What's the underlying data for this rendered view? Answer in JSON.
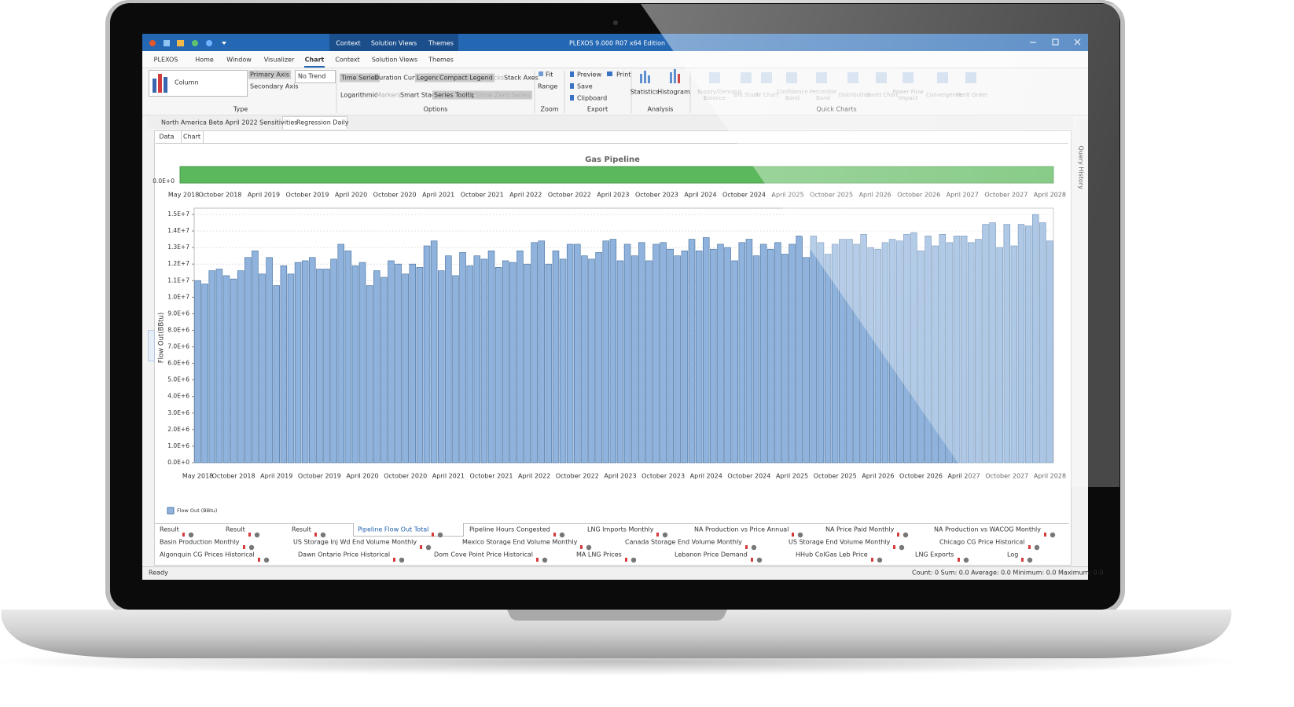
{
  "window": {
    "title": "PLEXOS 9.000 R07 x64 Edition",
    "context_tabs": [
      "Context",
      "Solution Views",
      "Themes"
    ]
  },
  "menu": [
    "PLEXOS",
    "Home",
    "Window",
    "Visualizer",
    "Chart",
    "Context",
    "Solution Views",
    "Themes"
  ],
  "ribbon": {
    "type": {
      "label": "Type",
      "chart_type": "Column",
      "primary": "Primary Axis",
      "secondary": "Secondary Axis",
      "trend": "No Trend"
    },
    "options": {
      "label": "Options",
      "items": [
        "Time Series",
        "Duration Curve",
        "Legend",
        "Compact Legend",
        "Ticks",
        "Stack Axes",
        "Logarithmic",
        "Markers",
        "Smart Stack",
        "Series Tooltips",
        "Show Zero Series"
      ]
    },
    "zoom": {
      "label": "Zoom",
      "items": [
        "Fit",
        "Range"
      ]
    },
    "export": {
      "label": "Export",
      "items": [
        "Preview",
        "Print",
        "Save",
        "Clipboard"
      ]
    },
    "analysis": {
      "label": "Analysis",
      "items": [
        "Statistics",
        "Histogram"
      ]
    },
    "quick_charts": {
      "label": "Quick Charts",
      "items": [
        "Supply/Demand Balance",
        "Bid Stack",
        "XY Chart",
        "Confidence Band",
        "Percentile Band",
        "Distribution",
        "Gantt Chart",
        "Power Flow Impact",
        "Convergence",
        "Merit Order"
      ]
    }
  },
  "documents": [
    "North America  Beta April 2022 Sensitivities",
    "Regression Daily"
  ],
  "view_tabs": [
    "Data",
    "Chart"
  ],
  "side_panel": "Query History",
  "results": [
    [
      "Result",
      "Result",
      "Result",
      "Pipeline Flow Out Total",
      "Pipeline Hours Congested",
      "LNG Imports Monthly",
      "NA Production  vs Price Annual",
      "NA Price Paid Monthly",
      "NA Production vs WACOG Monthly"
    ],
    [
      "Basin Production Monthly",
      "US Storage Inj Wd End Volume Monthly",
      "Mexico Storage End Volume Monthly",
      "Canada Storage End Volume Monthly",
      "US Storage End Volume Monthly",
      "Chicago CG Price Historical"
    ],
    [
      "Algonquin CG Prices Historical",
      "Dawn Ontario Price Historical",
      "Dom Cove Point Price Historical",
      "MA LNG Prices",
      "Lebanon Price Demand",
      "HHub ColGas Leb Price",
      "LNG Exports",
      "Log"
    ]
  ],
  "status": {
    "left": "Ready",
    "right": "Count: 0  Sum: 0.0  Average: 0.0  Minimum: 0.0  Maximum: 0.0"
  },
  "chart_data": {
    "type": "bar",
    "title": "Gas Pipeline",
    "y_label": "Flow Out(BBtu)",
    "categories": [
      "May 2018",
      null,
      null,
      null,
      null,
      "October 2018",
      null,
      null,
      null,
      null,
      null,
      "April 2019",
      null,
      null,
      null,
      null,
      null,
      "October 2019",
      null,
      null,
      null,
      null,
      null,
      "April 2020",
      null,
      null,
      null,
      null,
      null,
      "October 2020",
      null,
      null,
      null,
      null,
      null,
      "April 2021",
      null,
      null,
      null,
      null,
      null,
      "October 2021",
      null,
      null,
      null,
      null,
      null,
      "April 2022",
      null,
      null,
      null,
      null,
      null,
      "October 2022",
      null,
      null,
      null,
      null,
      null,
      "April 2023",
      null,
      null,
      null,
      null,
      null,
      "October 2023",
      null,
      null,
      null,
      null,
      null,
      "April 2024",
      null,
      null,
      null,
      null,
      null,
      "October 2024",
      null,
      null,
      null,
      null,
      null,
      "April 2025",
      null,
      null,
      null,
      null,
      null,
      "October 2025",
      null,
      null,
      null,
      null,
      null,
      "April 2026",
      null,
      null,
      null,
      null,
      null,
      "October 2026",
      null,
      null,
      null,
      null,
      null,
      "April 2027",
      null,
      null,
      null,
      null,
      null,
      "October 2027",
      null,
      null,
      null,
      null,
      null,
      "April 2028"
    ],
    "series": [
      {
        "name": "Flow Out (BBtu)",
        "color": "#8fb3dc",
        "values": [
          11000000,
          10800000,
          11600000,
          11700000,
          11300000,
          11100000,
          11600000,
          12400000,
          12800000,
          11400000,
          12400000,
          10700000,
          11900000,
          11400000,
          12100000,
          12200000,
          12400000,
          11700000,
          11700000,
          12300000,
          13200000,
          12800000,
          11900000,
          12100000,
          10700000,
          11600000,
          11200000,
          12200000,
          12000000,
          11400000,
          12000000,
          11800000,
          13100000,
          13400000,
          11600000,
          12500000,
          11300000,
          12700000,
          11900000,
          12500000,
          12300000,
          12800000,
          11800000,
          12200000,
          12100000,
          12800000,
          12000000,
          13300000,
          13400000,
          12000000,
          12800000,
          12300000,
          13200000,
          13200000,
          12500000,
          12300000,
          12700000,
          13400000,
          13500000,
          12200000,
          13200000,
          12500000,
          13300000,
          12200000,
          13200000,
          13300000,
          12900000,
          12500000,
          12800000,
          13500000,
          12800000,
          13600000,
          12900000,
          13200000,
          13000000,
          12200000,
          13300000,
          13500000,
          12500000,
          13200000,
          12900000,
          13300000,
          12600000,
          13200000,
          13700000,
          12400000,
          13700000,
          13300000,
          12600000,
          13200000,
          13500000,
          13500000,
          13200000,
          13800000,
          13000000,
          12900000,
          13300000,
          13500000,
          13400000,
          13800000,
          13900000,
          12800000,
          13700000,
          13100000,
          13800000,
          13300000,
          13700000,
          13700000,
          13300000,
          13500000,
          14400000,
          14500000,
          13000000,
          14400000,
          13100000,
          14400000,
          14300000,
          15000000,
          14500000,
          13400000
        ]
      }
    ],
    "ylim": [
      0,
      15000000
    ],
    "yticks": [
      {
        "value": 0,
        "label": "0.0E+0"
      },
      {
        "value": 1000000,
        "label": "1.0E+6"
      },
      {
        "value": 2000000,
        "label": "2.0E+6"
      },
      {
        "value": 3000000,
        "label": "3.0E+6"
      },
      {
        "value": 4000000,
        "label": "4.0E+6"
      },
      {
        "value": 5000000,
        "label": "5.0E+6"
      },
      {
        "value": 6000000,
        "label": "6.0E+6"
      },
      {
        "value": 7000000,
        "label": "7.0E+6"
      },
      {
        "value": 8000000,
        "label": "8.0E+6"
      },
      {
        "value": 9000000,
        "label": "9.0E+6"
      },
      {
        "value": 10000000,
        "label": "1.0E+7"
      },
      {
        "value": 11000000,
        "label": "1.1E+7"
      },
      {
        "value": 12000000,
        "label": "1.2E+7"
      },
      {
        "value": 13000000,
        "label": "1.3E+7"
      },
      {
        "value": 14000000,
        "label": "1.4E+7"
      },
      {
        "value": 15000000,
        "label": "1.5E+7"
      }
    ],
    "grid": true,
    "legend": "bottom-left"
  }
}
